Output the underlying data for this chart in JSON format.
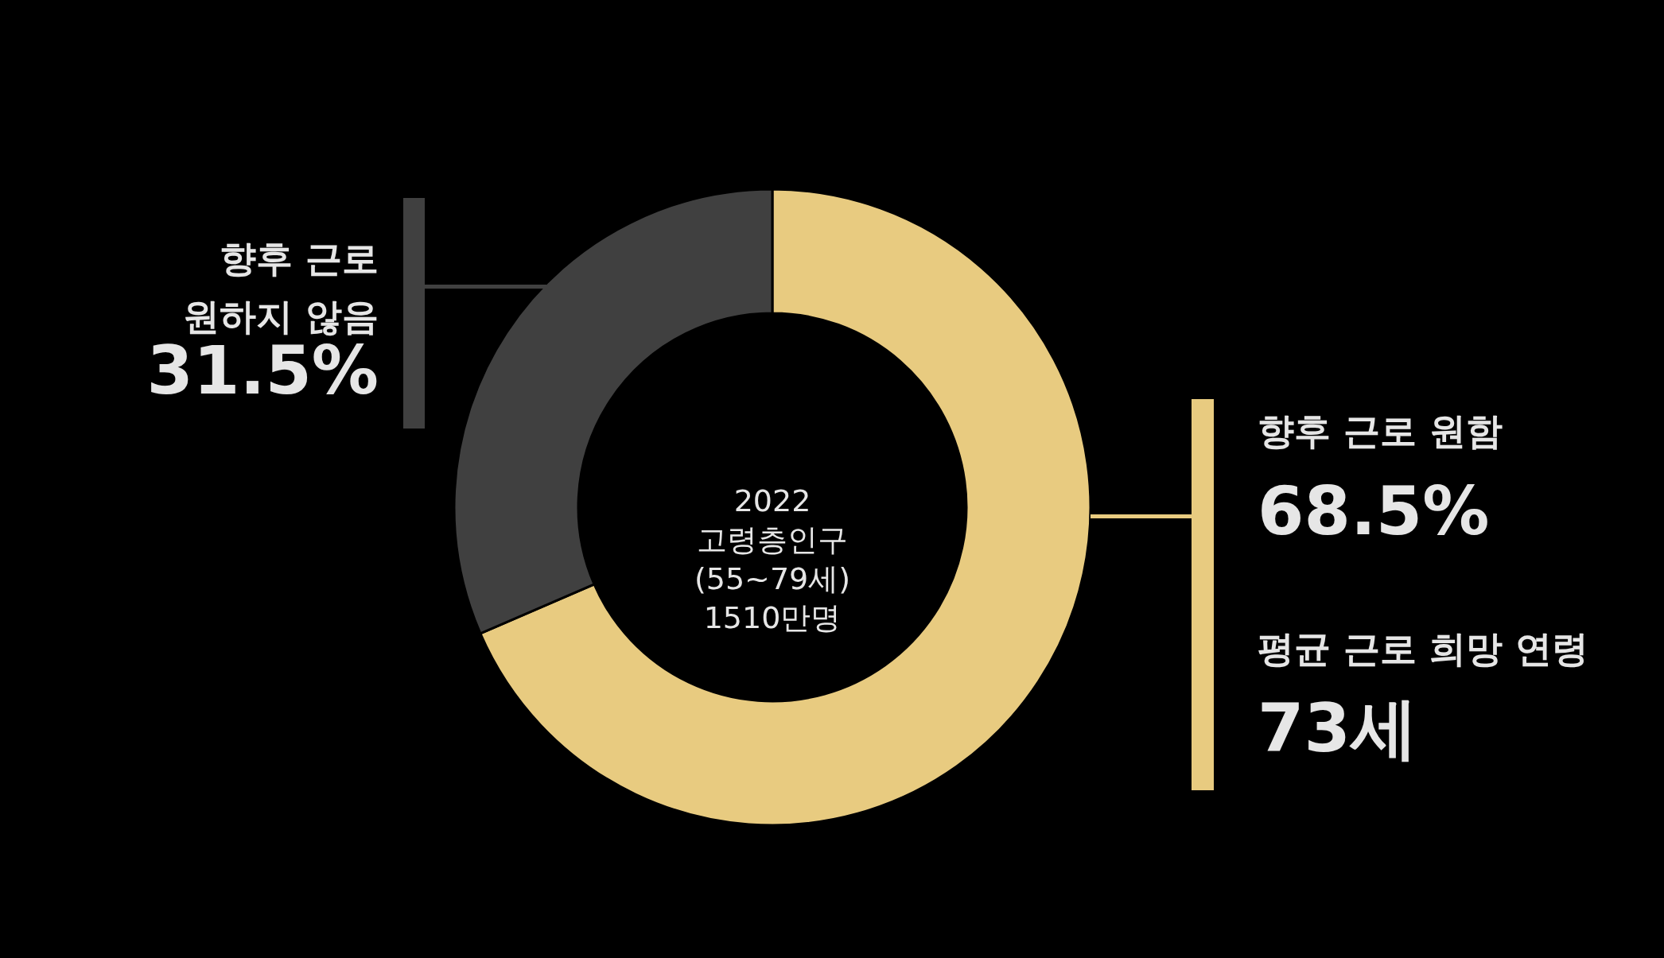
{
  "chart_data": {
    "type": "donut",
    "categories": [
      "향후 근로 원함",
      "향후 근로 원하지 않음"
    ],
    "values": [
      68.5,
      31.5
    ],
    "colors": [
      "#e8cb80",
      "#404040"
    ],
    "value_labels": [
      "68.5%",
      "31.5%"
    ],
    "annotations": [
      "2022 고령층인구 (55~79세) 1510만명",
      "평균 근로 희망 연령",
      "73세"
    ]
  }
}
